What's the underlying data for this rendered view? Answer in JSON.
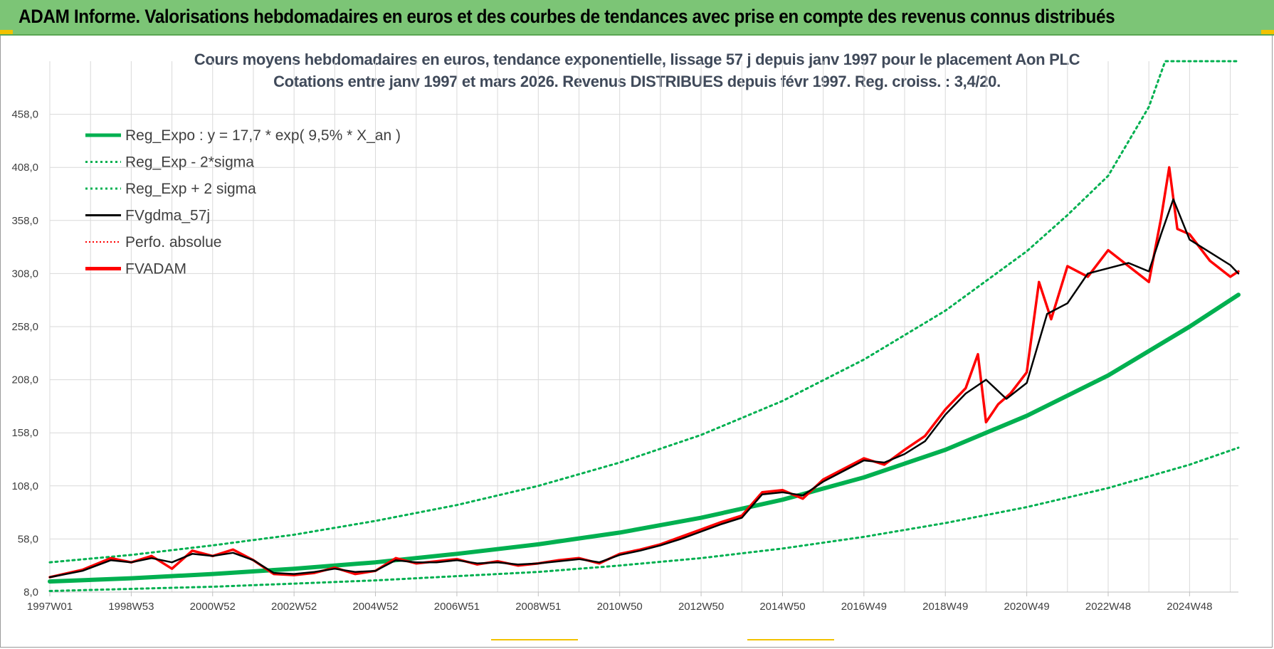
{
  "header": {
    "banner_title": "ADAM Informe. Valorisations hebdomadaires en euros et des courbes de tendances avec prise en compte des revenus connus distribués"
  },
  "colors": {
    "banner_bg": "#7cc576",
    "trend_green": "#00b050",
    "fv_red": "#ff0000",
    "fvgdma_black": "#000000",
    "grid": "#d9d9d9"
  },
  "chart_data": {
    "type": "line",
    "title": "Cours moyens hebdomadaires en euros, tendance exponentielle, lissage 57 j depuis janv 1997 pour le placement Aon PLC",
    "subtitle": "Cotations entre janv 1997 et mars 2026. Revenus DISTRIBUES depuis févr 1997. Reg. croiss. : 3,4/20.",
    "xlabel": "",
    "ylabel": "",
    "x_range_years": [
      1997.0,
      2026.2
    ],
    "ylim": [
      8.0,
      508.0
    ],
    "y_ticks": [
      "8,0",
      "58,0",
      "108,0",
      "158,0",
      "208,0",
      "258,0",
      "308,0",
      "358,0",
      "408,0",
      "458,0"
    ],
    "x_ticks": [
      "1997W01",
      "1998W53",
      "2000W52",
      "2002W52",
      "2004W52",
      "2006W51",
      "2008W51",
      "2010W50",
      "2012W50",
      "2014W50",
      "2016W49",
      "2018W49",
      "2020W49",
      "2022W48",
      "2024W48"
    ],
    "x_tick_years": [
      1997.0,
      1999.0,
      2001.0,
      2003.0,
      2005.0,
      2007.0,
      2009.0,
      2011.0,
      2013.0,
      2015.0,
      2017.0,
      2019.0,
      2021.0,
      2023.0,
      2025.0
    ],
    "grid": true,
    "legend_position": "top-left",
    "legend": [
      {
        "label": "Reg_Expo : y = 17,7 * exp( 9,5% *  X_an )",
        "style": "solid-thick",
        "color": "#00b050"
      },
      {
        "label": "Reg_Exp - 2*sigma",
        "style": "dotted",
        "color": "#00b050"
      },
      {
        "label": "Reg_Exp + 2 sigma",
        "style": "dotted",
        "color": "#00b050"
      },
      {
        "label": "FVgdma_57j",
        "style": "solid",
        "color": "#000000"
      },
      {
        "label": "Perfo. absolue",
        "style": "dotted-thin",
        "color": "#ff0000"
      },
      {
        "label": "FVADAM",
        "style": "solid-thick",
        "color": "#ff0000"
      }
    ],
    "series": [
      {
        "name": "Reg_Expo : y = 17,7 * exp( 9,5% *  X_an )",
        "x": [
          1997.0,
          1999.0,
          2001.0,
          2003.0,
          2005.0,
          2007.0,
          2009.0,
          2011.0,
          2013.0,
          2015.0,
          2017.0,
          2019.0,
          2021.0,
          2023.0,
          2025.0,
          2026.2
        ],
        "values": [
          18,
          21,
          25,
          30,
          36,
          44,
          53,
          64,
          78,
          95,
          116,
          142,
          174,
          212,
          258,
          288
        ]
      },
      {
        "name": "Reg_Exp - 2*sigma",
        "x": [
          1997.0,
          1999.0,
          2001.0,
          2003.0,
          2005.0,
          2007.0,
          2009.0,
          2011.0,
          2013.0,
          2015.0,
          2017.0,
          2019.0,
          2021.0,
          2023.0,
          2025.0,
          2026.2
        ],
        "values": [
          9,
          11,
          13,
          16,
          19,
          23,
          27,
          33,
          40,
          49,
          60,
          73,
          88,
          106,
          128,
          144
        ]
      },
      {
        "name": "Reg_Exp + 2 sigma",
        "x": [
          1997.0,
          1999.0,
          2001.0,
          2003.0,
          2005.0,
          2007.0,
          2009.0,
          2011.0,
          2013.0,
          2015.0,
          2017.0,
          2019.0,
          2021.0,
          2022.0,
          2023.0,
          2024.0,
          2024.4,
          2026.2
        ],
        "values": [
          36,
          43,
          52,
          62,
          75,
          90,
          108,
          130,
          156,
          188,
          227,
          273,
          329,
          363,
          400,
          465,
          508,
          508
        ]
      },
      {
        "name": "FVgdma_57j",
        "x": [
          1997.0,
          1997.8,
          1998.5,
          1999.0,
          1999.5,
          2000.0,
          2000.5,
          2001.0,
          2001.5,
          2002.0,
          2002.5,
          2003.0,
          2003.5,
          2004.0,
          2004.5,
          2005.0,
          2005.5,
          2006.0,
          2006.5,
          2007.0,
          2007.5,
          2008.0,
          2008.5,
          2009.0,
          2009.5,
          2010.0,
          2010.5,
          2011.0,
          2011.5,
          2012.0,
          2012.5,
          2013.0,
          2013.5,
          2014.0,
          2014.5,
          2015.0,
          2015.5,
          2016.0,
          2016.5,
          2017.0,
          2017.5,
          2018.0,
          2018.5,
          2019.0,
          2019.5,
          2020.0,
          2020.5,
          2021.0,
          2021.5,
          2022.0,
          2022.5,
          2023.0,
          2023.5,
          2024.0,
          2024.3,
          2024.6,
          2025.0,
          2025.5,
          2026.0,
          2026.2
        ],
        "values": [
          22,
          28,
          38,
          36,
          40,
          36,
          44,
          42,
          45,
          38,
          26,
          25,
          27,
          30,
          27,
          28,
          38,
          36,
          36,
          38,
          35,
          36,
          34,
          35,
          37,
          39,
          36,
          43,
          47,
          52,
          58,
          65,
          72,
          78,
          100,
          102,
          99,
          112,
          122,
          132,
          130,
          138,
          150,
          175,
          195,
          208,
          190,
          205,
          270,
          280,
          308,
          313,
          318,
          310,
          345,
          378,
          340,
          328,
          316,
          308
        ]
      },
      {
        "name": "FVADAM",
        "x": [
          1997.0,
          1997.8,
          1998.5,
          1999.0,
          1999.5,
          2000.0,
          2000.5,
          2001.0,
          2001.5,
          2002.0,
          2002.5,
          2003.0,
          2003.5,
          2004.0,
          2004.5,
          2005.0,
          2005.5,
          2006.0,
          2006.5,
          2007.0,
          2007.5,
          2008.0,
          2008.5,
          2009.0,
          2009.5,
          2010.0,
          2010.5,
          2011.0,
          2011.5,
          2012.0,
          2012.5,
          2013.0,
          2013.5,
          2014.0,
          2014.5,
          2015.0,
          2015.5,
          2016.0,
          2016.5,
          2017.0,
          2017.5,
          2018.0,
          2018.5,
          2019.0,
          2019.5,
          2019.8,
          2020.0,
          2020.3,
          2020.6,
          2021.0,
          2021.3,
          2021.6,
          2022.0,
          2022.5,
          2023.0,
          2023.5,
          2024.0,
          2024.3,
          2024.5,
          2024.7,
          2025.0,
          2025.5,
          2026.0,
          2026.2
        ],
        "values": [
          22,
          29,
          40,
          36,
          42,
          30,
          47,
          42,
          48,
          38,
          25,
          24,
          26,
          31,
          25,
          28,
          40,
          35,
          37,
          39,
          34,
          37,
          33,
          35,
          38,
          40,
          35,
          44,
          48,
          53,
          60,
          67,
          74,
          80,
          102,
          104,
          96,
          114,
          124,
          134,
          128,
          142,
          155,
          180,
          200,
          232,
          168,
          185,
          195,
          215,
          300,
          265,
          315,
          305,
          330,
          315,
          300,
          360,
          408,
          350,
          345,
          320,
          305,
          310
        ]
      },
      {
        "name": "Perfo. absolue",
        "x": [],
        "values": []
      }
    ]
  }
}
